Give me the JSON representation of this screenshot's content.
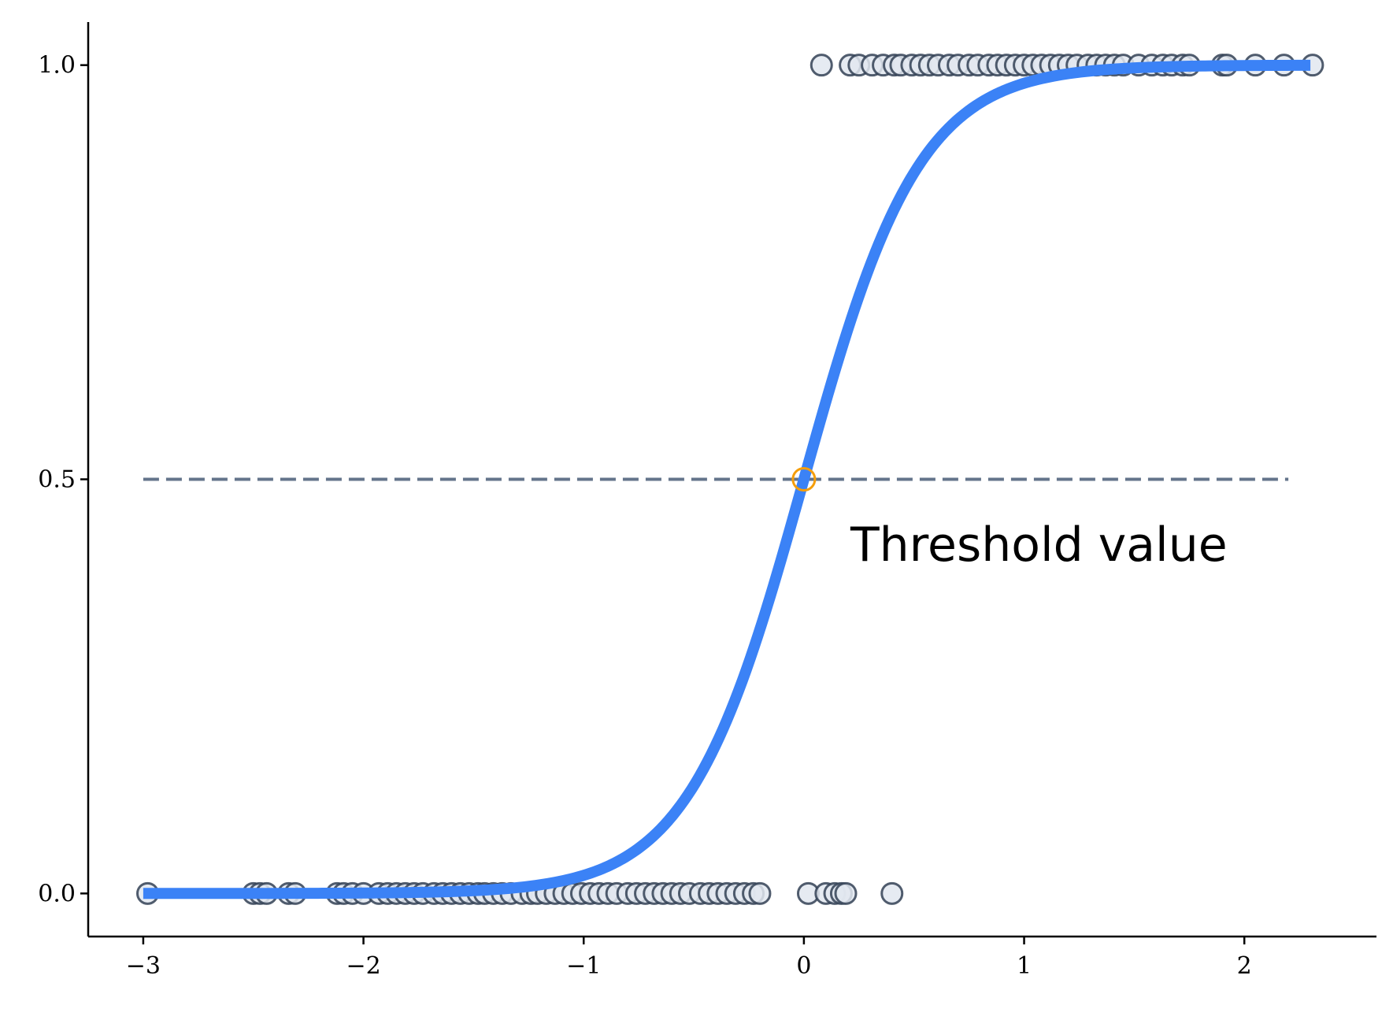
{
  "chart_data": {
    "type": "scatter",
    "title": "",
    "xlabel": "",
    "ylabel": "",
    "xlim": [
      -3.25,
      2.6
    ],
    "ylim": [
      -0.052,
      1.052
    ],
    "grid": false,
    "x_ticks": [
      {
        "value": -3,
        "label": "−3"
      },
      {
        "value": -2,
        "label": "−2"
      },
      {
        "value": -1,
        "label": "−1"
      },
      {
        "value": 0,
        "label": "0"
      },
      {
        "value": 1,
        "label": "1"
      },
      {
        "value": 2,
        "label": "2"
      }
    ],
    "y_ticks": [
      {
        "value": 0.0,
        "label": "0.0"
      },
      {
        "value": 0.5,
        "label": "0.5"
      },
      {
        "value": 1.0,
        "label": "1.0"
      }
    ],
    "series": [
      {
        "kind": "scatter",
        "color": "#334155",
        "fill": "#e2e8f0",
        "y": 0,
        "x": [
          -2.98,
          -2.5,
          -2.47,
          -2.44,
          -2.34,
          -2.31,
          -2.12,
          -2.09,
          -2.05,
          -2.0,
          -1.93,
          -1.89,
          -1.85,
          -1.81,
          -1.77,
          -1.73,
          -1.68,
          -1.64,
          -1.6,
          -1.56,
          -1.52,
          -1.48,
          -1.45,
          -1.41,
          -1.37,
          -1.33,
          -1.28,
          -1.24,
          -1.21,
          -1.17,
          -1.13,
          -1.09,
          -1.05,
          -1.01,
          -0.97,
          -0.93,
          -0.89,
          -0.85,
          -0.8,
          -0.76,
          -0.72,
          -0.68,
          -0.64,
          -0.6,
          -0.56,
          -0.52,
          -0.47,
          -0.43,
          -0.39,
          -0.35,
          -0.31,
          -0.27,
          -0.23,
          -0.2,
          0.02,
          0.1,
          0.14,
          0.17,
          0.19,
          0.4
        ]
      },
      {
        "kind": "scatter",
        "color": "#334155",
        "fill": "#e2e8f0",
        "y": 1,
        "x": [
          0.08,
          0.21,
          0.25,
          0.31,
          0.36,
          0.41,
          0.44,
          0.49,
          0.53,
          0.57,
          0.61,
          0.66,
          0.7,
          0.75,
          0.79,
          0.84,
          0.88,
          0.92,
          0.96,
          1.0,
          1.04,
          1.08,
          1.12,
          1.16,
          1.2,
          1.24,
          1.29,
          1.33,
          1.37,
          1.41,
          1.45,
          1.52,
          1.58,
          1.63,
          1.67,
          1.72,
          1.75,
          1.9,
          1.92,
          2.05,
          2.18,
          2.31
        ]
      },
      {
        "kind": "line",
        "name": "sigmoid",
        "color": "#3b82f6",
        "k": 3.8,
        "x_range": [
          -3,
          2.3
        ]
      },
      {
        "kind": "line",
        "style": "dashed",
        "color": "#64748b",
        "y": 0.5,
        "x_range": [
          -3,
          2.2
        ]
      },
      {
        "kind": "point",
        "color": "#f59e0b",
        "x": 0,
        "y": 0.5
      }
    ],
    "annotations": [
      {
        "text": "Threshold value",
        "x": 0.2,
        "y": 0.42
      }
    ]
  }
}
